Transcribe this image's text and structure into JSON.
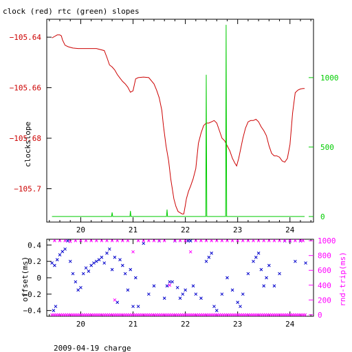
{
  "chart_data": [
    {
      "type": "line",
      "title": "clock (red) rtc (green) slopes",
      "ylabel": "clockslope",
      "x_ticks": [
        20,
        21,
        22,
        23,
        24
      ],
      "x_range": [
        19.35,
        24.45
      ],
      "y_left_ticks": [
        {
          "value": -105.64,
          "label": "−105.64"
        },
        {
          "value": -105.66,
          "label": "−105.66"
        },
        {
          "value": -105.68,
          "label": "−105.68"
        },
        {
          "value": -105.7,
          "label": "−105.7"
        }
      ],
      "y_left_range": [
        -105.7132,
        -105.6329
      ],
      "y_right_ticks": [
        0,
        500,
        1000
      ],
      "y_right_range": [
        -40,
        1420
      ],
      "grid": false,
      "colors": {
        "clock": "#cc0000",
        "rtc": "#00cc00",
        "text": "#000000"
      },
      "series": [
        {
          "name": "clock",
          "axis": "left",
          "color": "#cc0000",
          "x": [
            19.45,
            19.5,
            19.55,
            19.6,
            19.63,
            19.65,
            19.7,
            19.76,
            19.85,
            19.95,
            20.1,
            20.3,
            20.45,
            20.5,
            20.55,
            20.6,
            20.65,
            20.7,
            20.75,
            20.8,
            20.85,
            20.9,
            20.95,
            21.0,
            21.05,
            21.1,
            21.2,
            21.3,
            21.4,
            21.45,
            21.5,
            21.55,
            21.58,
            21.63,
            21.68,
            21.72,
            21.78,
            21.82,
            21.86,
            21.9,
            21.94,
            21.97,
            22.0,
            22.02,
            22.06,
            22.1,
            22.15,
            22.2,
            22.25,
            22.3,
            22.35,
            22.4,
            22.45,
            22.5,
            22.55,
            22.6,
            22.65,
            22.7,
            22.75,
            22.8,
            22.85,
            22.9,
            22.95,
            22.98,
            23.02,
            23.05,
            23.1,
            23.15,
            23.2,
            23.25,
            23.3,
            23.35,
            23.4,
            23.45,
            23.5,
            23.55,
            23.6,
            23.65,
            23.7,
            23.75,
            23.8,
            23.85,
            23.9,
            23.95,
            24.0,
            24.05,
            24.1,
            24.15,
            24.2,
            24.25,
            24.28
          ],
          "y": [
            -105.6403,
            -105.6397,
            -105.6391,
            -105.6391,
            -105.6395,
            -105.641,
            -105.6432,
            -105.6438,
            -105.6443,
            -105.6445,
            -105.6445,
            -105.6445,
            -105.6453,
            -105.648,
            -105.651,
            -105.6518,
            -105.653,
            -105.6548,
            -105.6562,
            -105.6575,
            -105.6585,
            -105.6598,
            -105.6618,
            -105.6612,
            -105.6565,
            -105.656,
            -105.6558,
            -105.656,
            -105.6585,
            -105.661,
            -105.664,
            -105.669,
            -105.675,
            -105.683,
            -105.689,
            -105.696,
            -105.704,
            -105.707,
            -105.709,
            -105.7095,
            -105.71,
            -105.71,
            -105.7065,
            -105.704,
            -105.701,
            -105.699,
            -105.696,
            -105.692,
            -105.682,
            -105.678,
            -105.675,
            -105.674,
            -105.674,
            -105.6735,
            -105.673,
            -105.674,
            -105.677,
            -105.68,
            -105.681,
            -105.683,
            -105.685,
            -105.688,
            -105.69,
            -105.691,
            -105.688,
            -105.685,
            -105.68,
            -105.676,
            -105.6735,
            -105.673,
            -105.673,
            -105.6725,
            -105.6735,
            -105.6755,
            -105.677,
            -105.679,
            -105.683,
            -105.686,
            -105.687,
            -105.687,
            -105.6875,
            -105.689,
            -105.6895,
            -105.688,
            -105.6825,
            -105.67,
            -105.662,
            -105.661,
            -105.6605,
            -105.6603,
            -105.6603
          ]
        },
        {
          "name": "rtc",
          "axis": "right",
          "color": "#00cc00",
          "x": [
            19.45,
            19.5,
            20.59,
            20.6,
            20.61,
            20.94,
            20.95,
            20.96,
            21.64,
            21.65,
            21.66,
            22.39,
            22.4,
            22.41,
            22.77,
            22.78,
            22.79,
            24.28
          ],
          "y": [
            0,
            0,
            0,
            30,
            0,
            0,
            40,
            0,
            0,
            50,
            0,
            0,
            1020,
            0,
            0,
            1380,
            0,
            0
          ]
        }
      ]
    },
    {
      "type": "scatter",
      "xlabel": "2009-04-19 charge",
      "ylabel": "offset(ms)",
      "y2label": "rnd-trip(ms)",
      "x_ticks": [
        20,
        21,
        22,
        23,
        24
      ],
      "x_range": [
        19.35,
        24.45
      ],
      "y_left_ticks": [
        {
          "value": 0.4,
          "label": "0.4"
        },
        {
          "value": 0.2,
          "label": "0.2"
        },
        {
          "value": 0,
          "label": "0"
        },
        {
          "value": -0.2,
          "label": "−0.2"
        },
        {
          "value": -0.4,
          "label": "−0.4"
        }
      ],
      "y_left_range": [
        -0.47,
        0.47
      ],
      "y_right_ticks": [
        0,
        200,
        400,
        600,
        800,
        1000
      ],
      "y_right_range": [
        -20,
        1020
      ],
      "grid": false,
      "colors": {
        "offset": "#0000cc",
        "rndtrip": "#ff00ff",
        "text": "#000000"
      },
      "series": [
        {
          "name": "offset",
          "axis": "left",
          "color": "#0000cc",
          "x": [
            19.45,
            19.48,
            19.5,
            19.52,
            19.55,
            19.6,
            19.65,
            19.7,
            19.75,
            19.8,
            19.85,
            19.9,
            19.95,
            20.0,
            20.05,
            20.1,
            20.15,
            20.2,
            20.25,
            20.3,
            20.35,
            20.4,
            20.45,
            20.5,
            20.55,
            20.6,
            20.65,
            20.7,
            20.75,
            20.8,
            20.85,
            20.9,
            20.95,
            21.0,
            21.05,
            21.1,
            21.2,
            21.3,
            21.4,
            21.5,
            21.6,
            21.65,
            21.7,
            21.75,
            21.8,
            21.85,
            21.9,
            21.95,
            22.0,
            22.05,
            22.1,
            22.15,
            22.2,
            22.3,
            22.4,
            22.45,
            22.5,
            22.55,
            22.6,
            22.7,
            22.8,
            22.9,
            23.0,
            23.05,
            23.1,
            23.2,
            23.3,
            23.35,
            23.4,
            23.45,
            23.5,
            23.55,
            23.6,
            23.7,
            23.8,
            23.9,
            24.0,
            24.1,
            24.2,
            24.3
          ],
          "y": [
            0.18,
            -0.4,
            0.15,
            -0.35,
            0.22,
            0.28,
            0.32,
            0.35,
            0.45,
            0.2,
            0.05,
            -0.05,
            -0.15,
            -0.12,
            0.05,
            0.12,
            0.08,
            0.15,
            0.18,
            0.2,
            0.22,
            0.25,
            0.18,
            0.3,
            0.35,
            0.1,
            0.25,
            -0.3,
            0.22,
            0.15,
            0.05,
            -0.15,
            0.1,
            -0.35,
            0.0,
            -0.35,
            0.42,
            -0.2,
            -0.1,
            0.45,
            -0.25,
            -0.1,
            -0.05,
            -0.05,
            0.45,
            -0.12,
            -0.25,
            -0.2,
            -0.15,
            0.45,
            0.45,
            -0.1,
            -0.2,
            -0.25,
            0.2,
            0.25,
            0.3,
            -0.35,
            -0.4,
            -0.2,
            0.0,
            -0.15,
            -0.3,
            -0.35,
            -0.2,
            0.05,
            0.2,
            0.25,
            0.3,
            0.1,
            -0.1,
            0.0,
            0.15,
            -0.1,
            0.05,
            0.45,
            0.45,
            0.2,
            0.45,
            0.18
          ]
        },
        {
          "name": "rnd-trip",
          "axis": "right",
          "color": "#ff00ff",
          "x": [
            19.5,
            19.6,
            19.7,
            19.8,
            19.9,
            20.0,
            20.1,
            20.2,
            20.3,
            20.4,
            20.5,
            20.6,
            20.65,
            20.7,
            20.8,
            20.9,
            21.0,
            21.1,
            21.2,
            21.3,
            21.4,
            21.5,
            21.6,
            21.7,
            21.8,
            21.9,
            22.0,
            22.1,
            22.2,
            22.3,
            22.4,
            22.5,
            22.6,
            22.7,
            22.8,
            22.9,
            23.0,
            23.1,
            23.2,
            23.3,
            23.4,
            23.5,
            23.6,
            23.7,
            23.8,
            23.9,
            24.0,
            24.1,
            24.2,
            24.25
          ],
          "y": [
            1000,
            1000,
            1000,
            990,
            1000,
            1000,
            1000,
            1000,
            1000,
            1000,
            1000,
            1000,
            200,
            1000,
            1000,
            1000,
            850,
            1000,
            1000,
            1000,
            1000,
            1000,
            1000,
            400,
            1000,
            1000,
            1000,
            850,
            1000,
            1000,
            1000,
            1000,
            1000,
            1000,
            1000,
            1000,
            1000,
            1000,
            1000,
            1000,
            1000,
            1000,
            1000,
            1000,
            1000,
            1000,
            1000,
            1000,
            1000,
            1000
          ]
        },
        {
          "name": "rnd-trip-baseline",
          "axis": "right",
          "color": "#ff00ff",
          "baseline_value": 0,
          "x_from": 19.45,
          "x_to": 24.3
        }
      ]
    }
  ]
}
